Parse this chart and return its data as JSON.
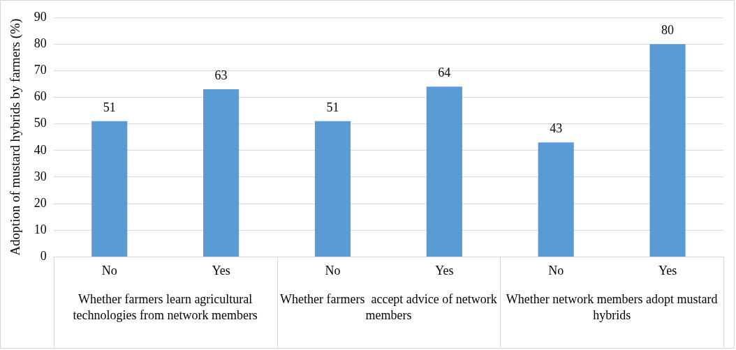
{
  "chart_data": {
    "type": "bar",
    "ylabel": "Adoption of mustard hybrids by farmers (%)",
    "categories": [
      "No",
      "Yes",
      "No",
      "Yes",
      "No",
      "Yes"
    ],
    "values": [
      51,
      63,
      51,
      64,
      43,
      80
    ],
    "color": "#5b9bd5",
    "data_labels": true,
    "ylim": [
      0,
      90
    ],
    "yticks": [
      0,
      10,
      20,
      30,
      40,
      50,
      60,
      70,
      80,
      90
    ],
    "grid": "y",
    "legend": false,
    "annotations": [
      "Whether farmers learn agricultural technologies from network members",
      "Whether farmers  accept advice of network members",
      "Whether network members adopt mustard hybrids"
    ]
  }
}
